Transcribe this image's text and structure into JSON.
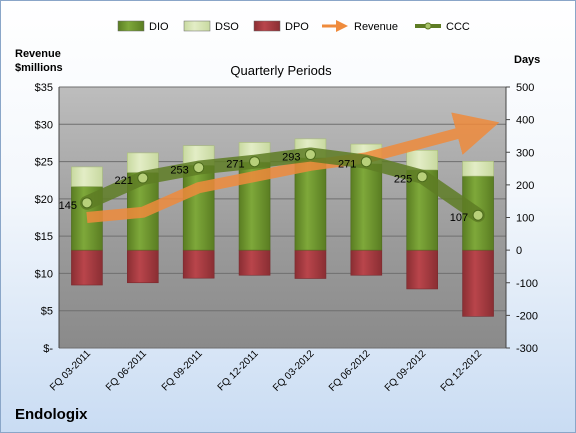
{
  "chart_data": {
    "type": "bar",
    "title": "Quarterly Periods",
    "company": "Endologix",
    "left_axis_label": [
      "Revenue",
      "$millions"
    ],
    "right_axis_label": "Days",
    "left_ticks": [
      "$35",
      "$30",
      "$25",
      "$20",
      "$15",
      "$10",
      "$5",
      "$-"
    ],
    "right_ticks": [
      "500",
      "400",
      "300",
      "200",
      "100",
      "0",
      "-100",
      "-200",
      "-300"
    ],
    "left_ylim": [
      0,
      35
    ],
    "right_ylim": [
      -300,
      500
    ],
    "categories": [
      "FQ 03-2011",
      "FQ 06-2011",
      "FQ 09-2011",
      "FQ 12-2011",
      "FQ 03-2012",
      "FQ 06-2012",
      "FQ 09-2012",
      "FQ 12-2012"
    ],
    "legend": [
      "DIO",
      "DSO",
      "DPO",
      "Revenue",
      "CCC"
    ],
    "legend_position": "top",
    "grid": true,
    "series": [
      {
        "name": "DIO",
        "axis": "right",
        "values": [
          195,
          238,
          260,
          270,
          283,
          265,
          246,
          227
        ]
      },
      {
        "name": "DSO",
        "axis": "right",
        "values": [
          60,
          60,
          60,
          60,
          58,
          60,
          60,
          45
        ]
      },
      {
        "name": "DPO",
        "axis": "right",
        "values": [
          -107,
          -100,
          -86,
          -77,
          -87,
          -77,
          -119,
          -203
        ]
      },
      {
        "name": "Revenue",
        "axis": "left",
        "values": [
          17.5,
          18.2,
          21.5,
          23.0,
          24.5,
          25.5,
          27.5,
          29.5
        ]
      },
      {
        "name": "CCC",
        "axis": "right",
        "values": [
          145,
          221,
          253,
          271,
          293,
          271,
          225,
          107
        ]
      }
    ],
    "ccc_labels": [
      "145",
      "221",
      "253",
      "271",
      "293",
      "271",
      "225",
      "107"
    ],
    "colors": {
      "DIO": "#7ea83a",
      "DIO_dark": "#5a7d22",
      "DSO": "#e3edc6",
      "DPO": "#b9454b",
      "DPO_dark": "#8a2e33",
      "Revenue": "#ef8b3c",
      "CCC": "#5e7c24",
      "plot_bg": "#8d8d8d"
    }
  }
}
